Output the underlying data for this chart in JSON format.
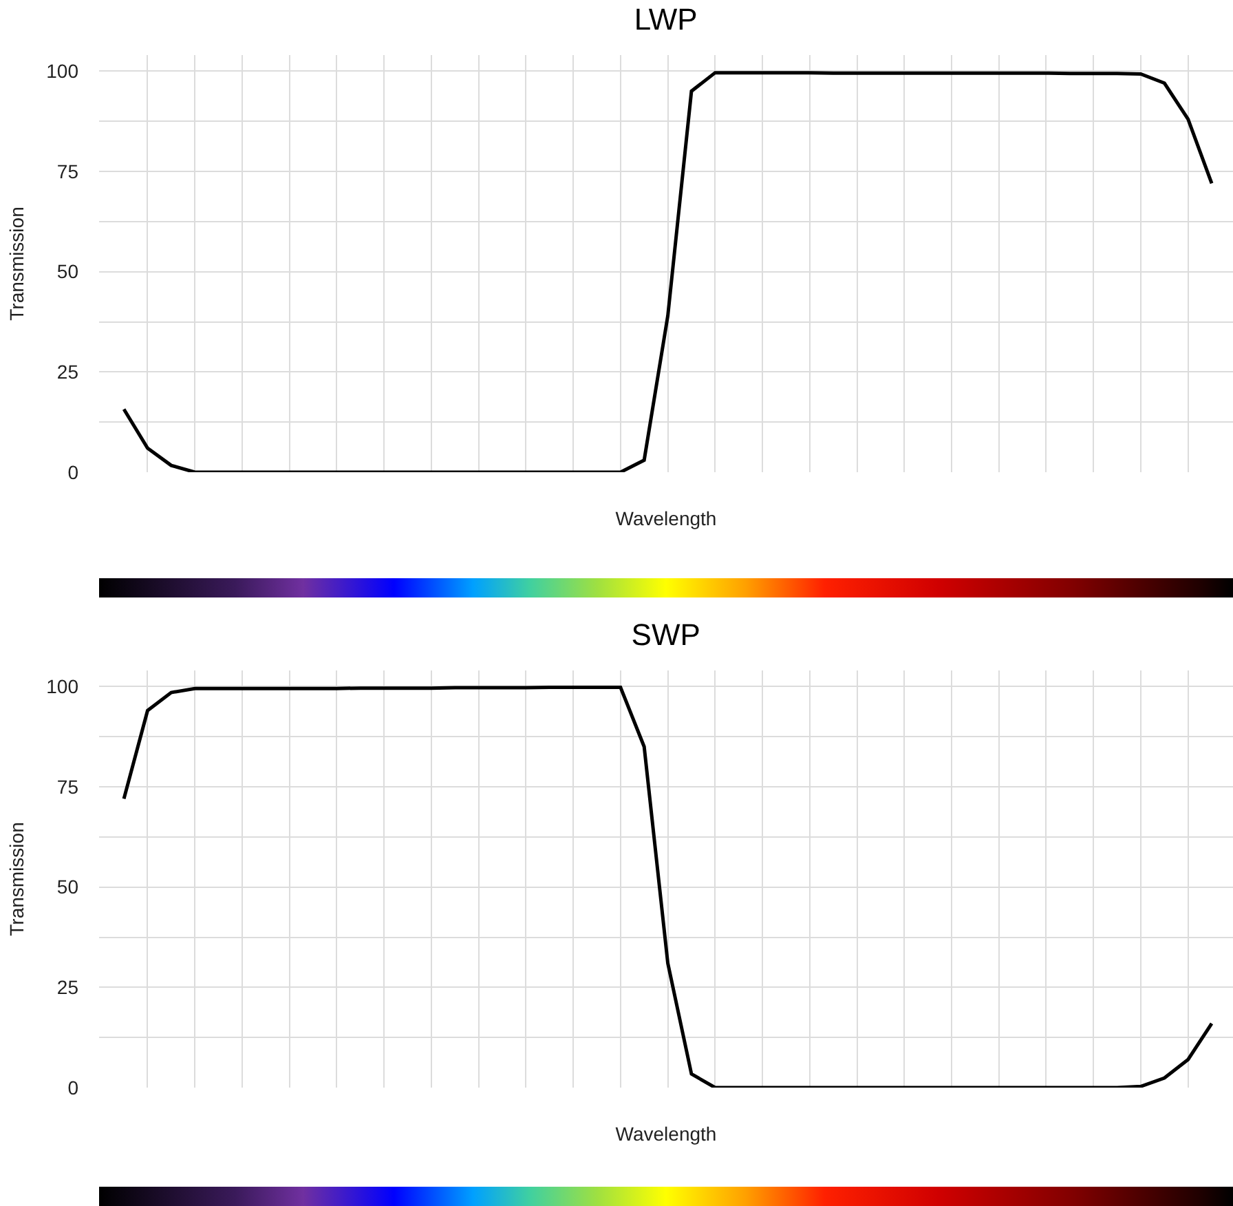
{
  "chart_data": [
    {
      "type": "line",
      "title": "LWP",
      "xlabel": "Wavelength",
      "ylabel": "Transmission",
      "categories": [
        null,
        null,
        null,
        null,
        null,
        null,
        null,
        null,
        null,
        null,
        null,
        null,
        null,
        null,
        null,
        null,
        null,
        null,
        null,
        null,
        null,
        null,
        null,
        null,
        null,
        null,
        null,
        null,
        null,
        null,
        null,
        null,
        null,
        null,
        null,
        null,
        null,
        null,
        null,
        null,
        null,
        null,
        null,
        null,
        null,
        null,
        null
      ],
      "series": [
        {
          "color": "#000000",
          "values": [
            15.7,
            6,
            1.7,
            0,
            0,
            0,
            0,
            0,
            0,
            0,
            0,
            0,
            0,
            0,
            0,
            0,
            0,
            0,
            0,
            0,
            0,
            0,
            3,
            39,
            95,
            99.6,
            99.6,
            99.6,
            99.6,
            99.6,
            99.5,
            99.5,
            99.5,
            99.5,
            99.5,
            99.5,
            99.5,
            99.5,
            99.5,
            99.5,
            99.4,
            99.4,
            99.4,
            99.3,
            97,
            88,
            72
          ]
        }
      ],
      "ylim": [
        0,
        104
      ],
      "yticks": [
        0,
        {
          "value": 12.5,
          "label": null
        },
        25,
        {
          "value": 37.5,
          "label": null
        },
        50,
        {
          "value": 62.5,
          "label": null
        },
        75,
        {
          "value": 87.5,
          "label": null
        },
        100
      ],
      "grid": true,
      "line_style": "solid",
      "marker": "none"
    },
    {
      "type": "line",
      "title": "SWP",
      "xlabel": "Wavelength",
      "ylabel": "Transmission",
      "categories": [
        null,
        null,
        null,
        null,
        null,
        null,
        null,
        null,
        null,
        null,
        null,
        null,
        null,
        null,
        null,
        null,
        null,
        null,
        null,
        null,
        null,
        null,
        null,
        null,
        null,
        null,
        null,
        null,
        null,
        null,
        null,
        null,
        null,
        null,
        null,
        null,
        null,
        null,
        null,
        null,
        null,
        null,
        null,
        null,
        null,
        null,
        null
      ],
      "series": [
        {
          "color": "#000000",
          "values": [
            72,
            94,
            98.5,
            99.5,
            99.5,
            99.5,
            99.5,
            99.5,
            99.5,
            99.5,
            99.6,
            99.6,
            99.6,
            99.6,
            99.7,
            99.7,
            99.7,
            99.7,
            99.8,
            99.8,
            99.8,
            99.8,
            85,
            31,
            3.4,
            0,
            0,
            0,
            0,
            0,
            0,
            0,
            0,
            0,
            0,
            0,
            0,
            0,
            0,
            0,
            0,
            0,
            0,
            0.3,
            2.4,
            7,
            16
          ]
        }
      ],
      "ylim": [
        0,
        104
      ],
      "yticks": [
        0,
        {
          "value": 12.5,
          "label": null
        },
        25,
        {
          "value": 37.5,
          "label": null
        },
        50,
        {
          "value": 62.5,
          "label": null
        },
        75,
        {
          "value": 87.5,
          "label": null
        },
        100
      ],
      "grid": true,
      "line_style": "solid",
      "marker": "none"
    }
  ]
}
